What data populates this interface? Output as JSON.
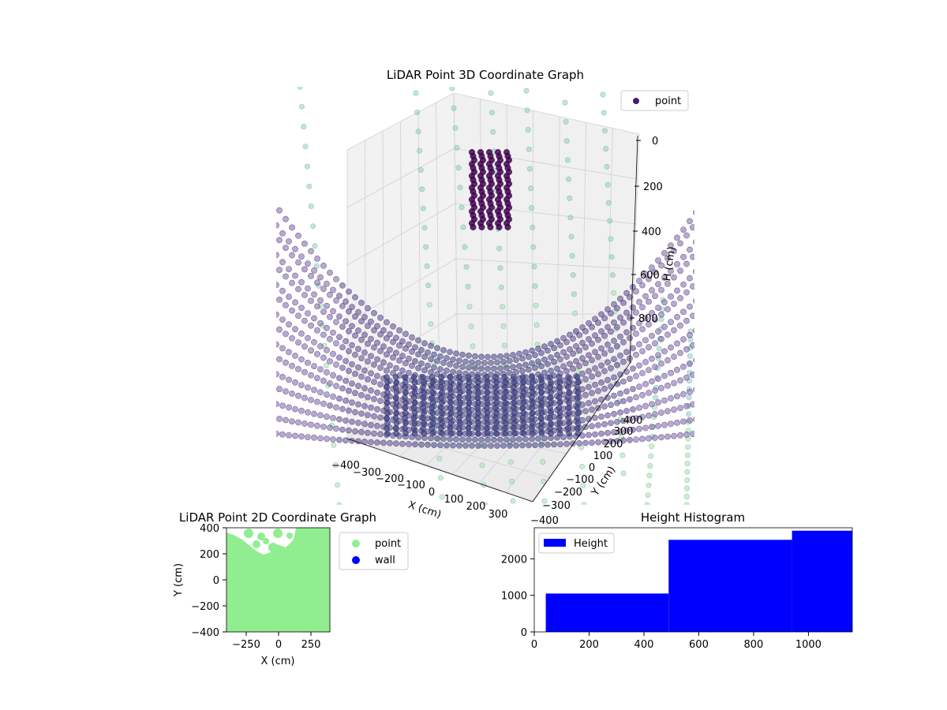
{
  "chart_data": [
    {
      "type": "scatter3d",
      "title": "LiDAR Point 3D Coordinate Graph",
      "xlabel": "X (cm)",
      "ylabel": "Y (cm)",
      "zlabel": "H (cm)",
      "xticks": [
        "−400",
        "−300",
        "−200",
        "−100",
        "0",
        "100",
        "200",
        "300"
      ],
      "yticks": [
        "−400",
        "−300",
        "−200",
        "−100",
        "0",
        "100",
        "200",
        "300",
        "400"
      ],
      "zticks": [
        "0",
        "200",
        "400",
        "600",
        "800"
      ],
      "xlim": [
        -400,
        400
      ],
      "ylim": [
        -400,
        400
      ],
      "zlim": [
        0,
        1000
      ],
      "z_inverted": true,
      "legend": {
        "position": "top-right",
        "entries": [
          {
            "label": "point",
            "color": "#4b1a6e"
          }
        ]
      },
      "colormap": "viridis",
      "structures": {
        "floor": "curved point bowl of rings, lowest near the center of the view, rising to the x edges",
        "wall_cluster": {
          "x_range": [
            -150,
            50
          ],
          "y": 400,
          "h_range": [
            0,
            250
          ],
          "color": "#440154"
        },
        "faint_vertical_lines": {
          "color_top": "#9fd3c2",
          "color_bottom": "#a8e0a0"
        }
      }
    },
    {
      "type": "scatter",
      "title": "LiDAR Point 2D Coordinate Graph",
      "xlabel": "X (cm)",
      "ylabel": "Y (cm)",
      "xticks": [
        "−250",
        "0",
        "250"
      ],
      "yticks": [
        "−400",
        "−200",
        "0",
        "200",
        "400"
      ],
      "xlim": [
        -400,
        400
      ],
      "ylim": [
        -400,
        400
      ],
      "legend": {
        "position": "outside-right",
        "entries": [
          {
            "label": "point",
            "color": "#90ee90"
          },
          {
            "label": "wall",
            "color": "#0000ff"
          }
        ]
      },
      "point_color": "#90ee90",
      "coverage": "dense points fill the whole plot area except a white gap at the top-left, y > 300"
    },
    {
      "type": "bar",
      "title": "Height Histogram",
      "xticks": [
        "0",
        "200",
        "400",
        "600",
        "800",
        "1000"
      ],
      "yticks": [
        "0",
        "1000",
        "2000"
      ],
      "xlim": [
        0,
        1160
      ],
      "ylim": [
        0,
        2850
      ],
      "color": "#0000ff",
      "legend": {
        "position": "top-left",
        "entries": [
          {
            "label": "Height",
            "color": "#0000ff"
          }
        ]
      },
      "series": [
        {
          "name": "Height",
          "bins": [
            {
              "x0": 42,
              "x1": 490,
              "value": 1050
            },
            {
              "x0": 490,
              "x1": 940,
              "value": 2520
            },
            {
              "x0": 940,
              "x1": 1160,
              "value": 2770
            }
          ]
        }
      ]
    }
  ]
}
